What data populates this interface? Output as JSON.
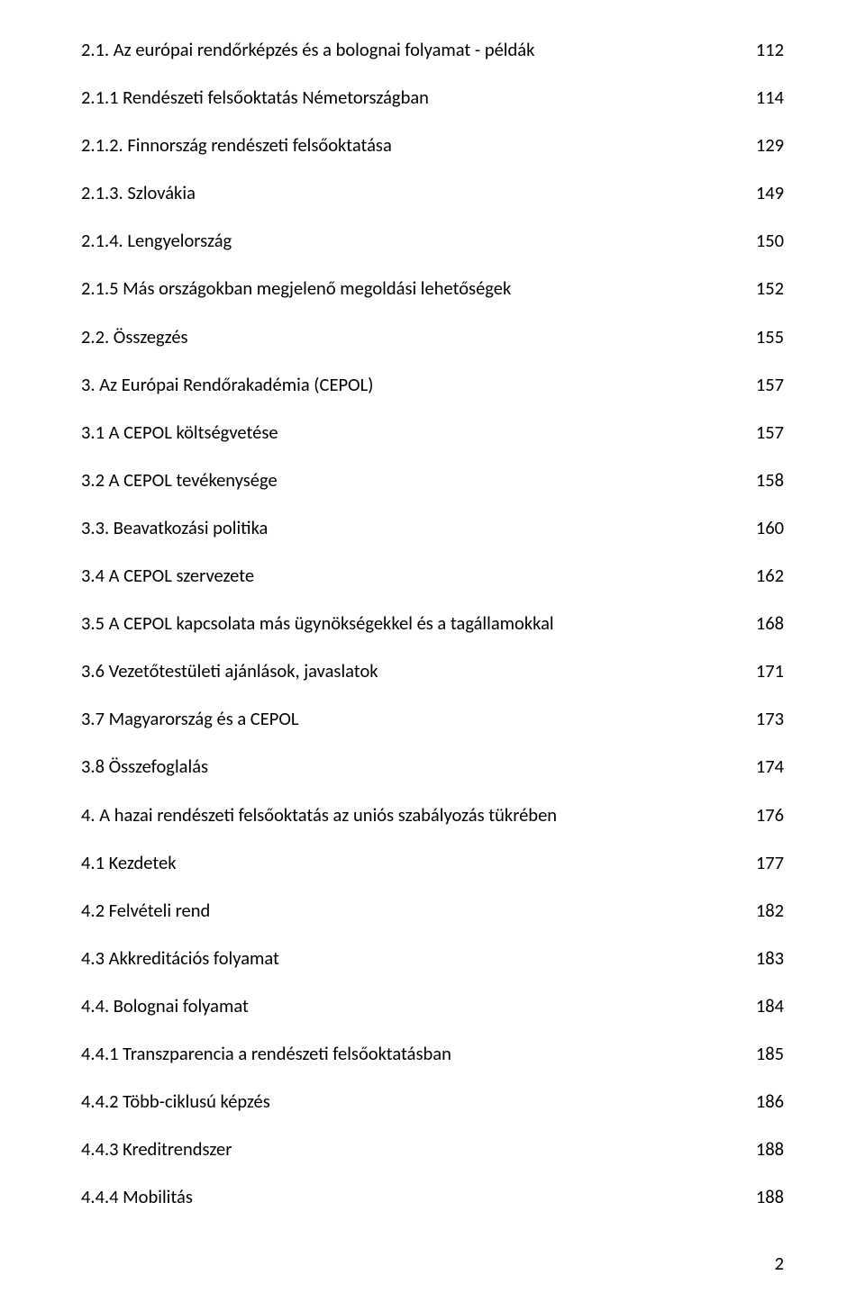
{
  "text_color": "#000000",
  "background_color": "#ffffff",
  "font_family": "Calibri, 'Segoe UI', Arial, sans-serif",
  "font_size_pt": 15,
  "toc": [
    {
      "label": "2.1. Az európai rendőrképzés és a bolognai folyamat - példák",
      "page": "112"
    },
    {
      "label": "2.1.1 Rendészeti felsőoktatás Németországban",
      "page": "114"
    },
    {
      "label": "2.1.2. Finnország rendészeti felsőoktatása",
      "page": "129"
    },
    {
      "label": "2.1.3. Szlovákia",
      "page": "149"
    },
    {
      "label": "2.1.4. Lengyelország",
      "page": "150"
    },
    {
      "label": "2.1.5  Más országokban megjelenő megoldási lehetőségek",
      "page": "152"
    },
    {
      "label": "2.2. Összegzés",
      "page": "155"
    },
    {
      "label": "3. Az Európai Rendőrakadémia (CEPOL)",
      "page": "157"
    },
    {
      "label": "3.1 A CEPOL költségvetése",
      "page": "157"
    },
    {
      "label": "3.2  A CEPOL tevékenysége",
      "page": "158"
    },
    {
      "label": "3.3. Beavatkozási politika",
      "page": "160"
    },
    {
      "label": "3.4  A CEPOL szervezete",
      "page": "162"
    },
    {
      "label": "3.5  A CEPOL kapcsolata más ügynökségekkel és a tagállamokkal",
      "page": "168"
    },
    {
      "label": "3.6 Vezetőtestületi ajánlások, javaslatok",
      "page": "171"
    },
    {
      "label": "3.7 Magyarország és a CEPOL",
      "page": "173"
    },
    {
      "label": "3.8 Összefoglalás",
      "page": "174"
    },
    {
      "label": "4. A hazai rendészeti felsőoktatás az uniós szabályozás tükrében",
      "page": "176"
    },
    {
      "label": "4.1 Kezdetek",
      "page": "177"
    },
    {
      "label": "4.2 Felvételi rend",
      "page": "182"
    },
    {
      "label": "4.3 Akkreditációs folyamat",
      "page": "183"
    },
    {
      "label": "4.4. Bolognai folyamat",
      "page": "184"
    },
    {
      "label": "4.4.1 Transzparencia a rendészeti felsőoktatásban",
      "page": "185"
    },
    {
      "label": "4.4.2 Több-ciklusú képzés",
      "page": "186"
    },
    {
      "label": "4.4.3 Kreditrendszer",
      "page": "188"
    },
    {
      "label": "4.4.4 Mobilitás",
      "page": "188"
    }
  ],
  "page_number": "2"
}
